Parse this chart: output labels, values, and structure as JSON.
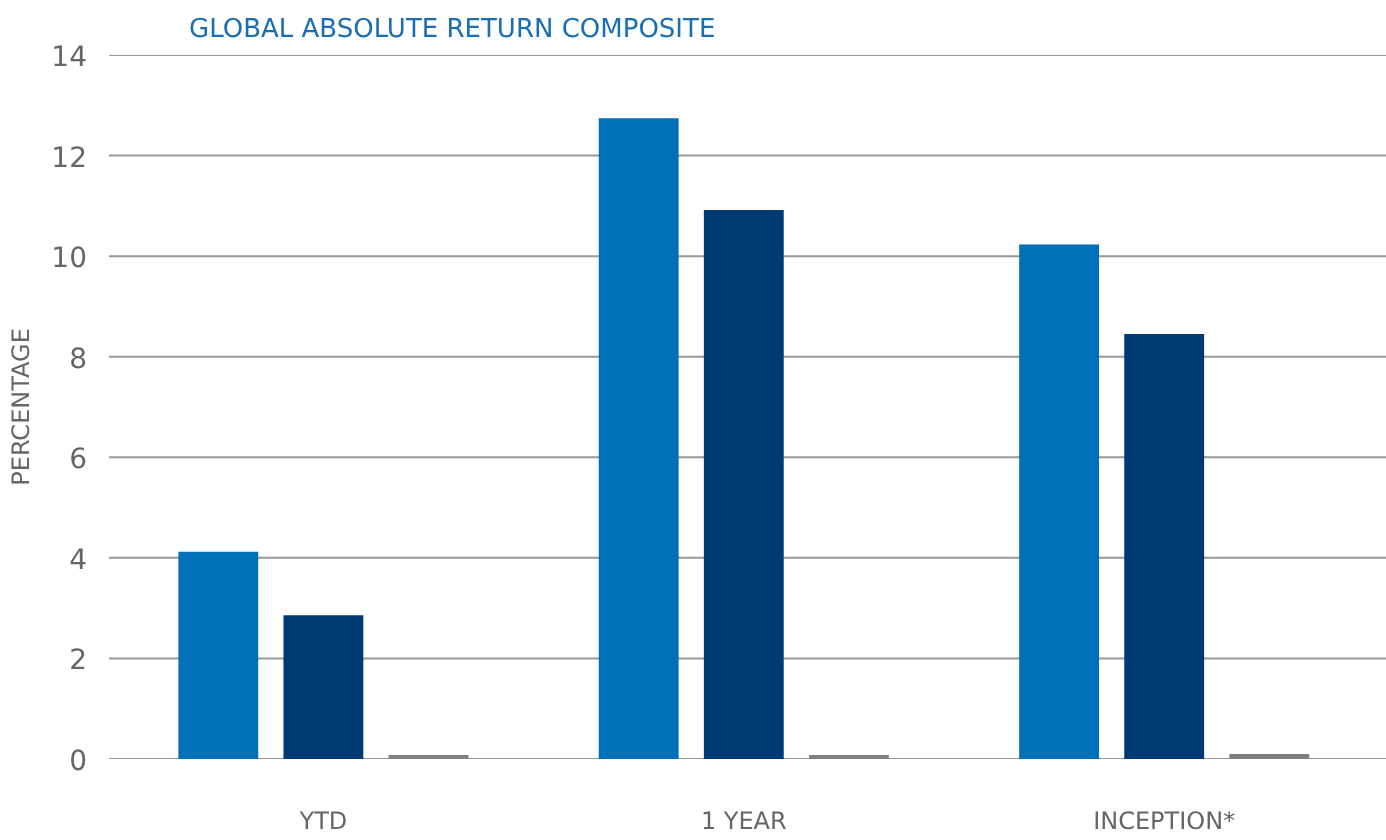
{
  "chart_data": {
    "type": "bar",
    "title": "GLOBAL ABSOLUTE RETURN COMPOSITE",
    "ylabel": "PERCENTAGE",
    "categories": [
      "YTD",
      "1 YEAR",
      "INCEPTION*"
    ],
    "series": [
      {
        "color": "#0070b8",
        "values": [
          4.12,
          12.74,
          10.23
        ]
      },
      {
        "color": "#003a75",
        "values": [
          2.86,
          10.92,
          8.45
        ]
      },
      {
        "color": "#7f8080",
        "values": [
          0.08,
          0.08,
          0.1
        ]
      }
    ],
    "ylim": [
      0,
      14
    ],
    "yticks": [
      0,
      2,
      4,
      6,
      8,
      10,
      12,
      14
    ],
    "grid": "y"
  }
}
